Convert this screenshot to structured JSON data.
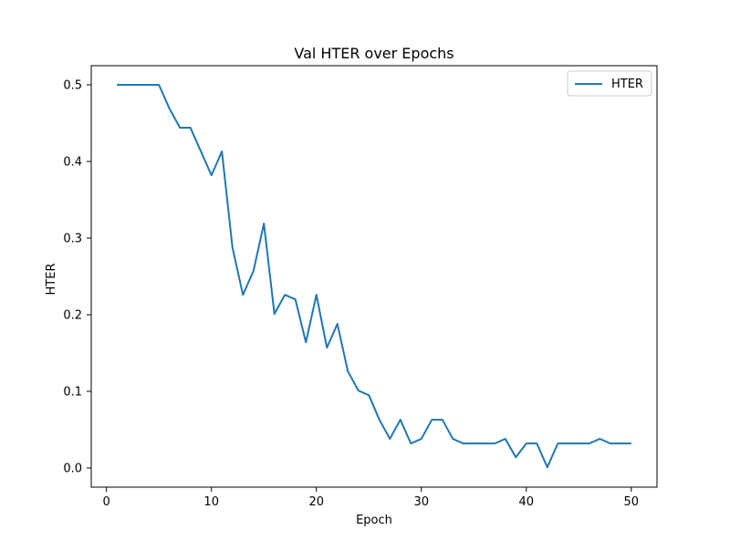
{
  "chart_data": {
    "type": "line",
    "title": "Val HTER over Epochs",
    "xlabel": "Epoch",
    "ylabel": "HTER",
    "xlim": [
      -1.45,
      52.45
    ],
    "ylim": [
      -0.025,
      0.525
    ],
    "xticks": [
      0,
      10,
      20,
      30,
      40,
      50
    ],
    "yticks": [
      0.0,
      0.1,
      0.2,
      0.3,
      0.4,
      0.5
    ],
    "xtick_labels": [
      "0",
      "10",
      "20",
      "30",
      "40",
      "50"
    ],
    "ytick_labels": [
      "0.0",
      "0.1",
      "0.2",
      "0.3",
      "0.4",
      "0.5"
    ],
    "grid": false,
    "legend": {
      "position": "top-right",
      "entries": [
        "HTER"
      ]
    },
    "series": [
      {
        "name": "HTER",
        "color": "#1f77b4",
        "x": [
          1,
          2,
          3,
          4,
          5,
          6,
          7,
          8,
          9,
          10,
          11,
          12,
          13,
          14,
          15,
          16,
          17,
          18,
          19,
          20,
          21,
          22,
          23,
          24,
          25,
          26,
          27,
          28,
          29,
          30,
          31,
          32,
          33,
          34,
          35,
          36,
          37,
          38,
          39,
          40,
          41,
          42,
          43,
          44,
          45,
          46,
          47,
          48,
          49,
          50
        ],
        "y": [
          0.5,
          0.5,
          0.5,
          0.5,
          0.5,
          0.469,
          0.444,
          0.444,
          0.413,
          0.382,
          0.413,
          0.288,
          0.226,
          0.257,
          0.319,
          0.201,
          0.226,
          0.22,
          0.164,
          0.226,
          0.157,
          0.188,
          0.126,
          0.101,
          0.095,
          0.063,
          0.038,
          0.063,
          0.032,
          0.038,
          0.063,
          0.063,
          0.038,
          0.032,
          0.032,
          0.032,
          0.032,
          0.038,
          0.014,
          0.032,
          0.032,
          0.001,
          0.032,
          0.032,
          0.032,
          0.032,
          0.038,
          0.032,
          0.032,
          0.032
        ]
      }
    ]
  }
}
